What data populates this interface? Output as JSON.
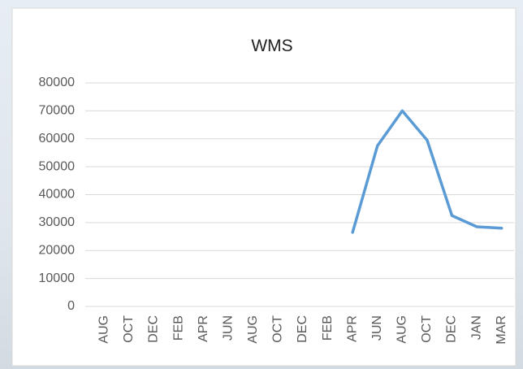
{
  "chart_data": {
    "type": "line",
    "title": "WMS",
    "categories": [
      "AUG",
      "OCT",
      "DEC",
      "FEB",
      "APR",
      "JUN",
      "AUG",
      "OCT",
      "DEC",
      "FEB",
      "APR",
      "JUN",
      "AUG",
      "OCT",
      "DEC",
      "JAN",
      "MAR"
    ],
    "series": [
      {
        "name": "WMS",
        "color": "#5b9bd5",
        "values": [
          null,
          null,
          null,
          null,
          null,
          null,
          null,
          null,
          null,
          null,
          26500,
          57500,
          70000,
          59500,
          32500,
          28500,
          28000
        ]
      }
    ],
    "ylim": [
      0,
      80000
    ],
    "yticks": [
      0,
      10000,
      20000,
      30000,
      40000,
      50000,
      60000,
      70000,
      80000
    ],
    "grid": true
  }
}
